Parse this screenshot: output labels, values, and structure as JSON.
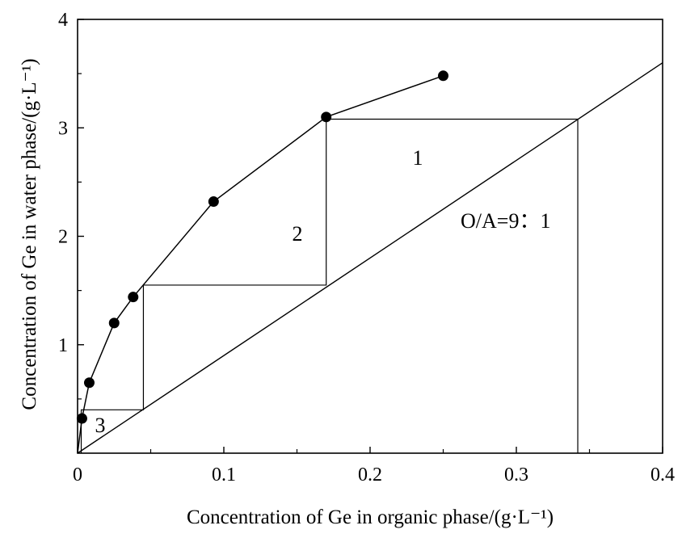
{
  "chart_data": {
    "type": "scatter",
    "xlabel": "Concentration of Ge in organic phase/(g·L⁻¹)",
    "ylabel": "Concentration of Ge in water phase/(g·L⁻¹)",
    "xlim": [
      0,
      0.4
    ],
    "ylim": [
      0,
      4
    ],
    "x_ticks": [
      0,
      0.1,
      0.2,
      0.3,
      0.4
    ],
    "x_tick_labels": [
      "0",
      "0.1",
      "0.2",
      "0.3",
      "0.4"
    ],
    "y_ticks": [
      1,
      2,
      3,
      4
    ],
    "y_tick_labels": [
      "1",
      "2",
      "3",
      "4"
    ],
    "grid": false,
    "series": [
      {
        "style": "line-with-markers",
        "x": [
          0.0,
          0.003,
          0.008,
          0.025,
          0.038,
          0.093,
          0.17,
          0.25
        ],
        "y": [
          0.0,
          0.32,
          0.65,
          1.2,
          1.44,
          2.32,
          3.1,
          3.48
        ]
      }
    ],
    "operating_line": {
      "x": [
        0.0,
        0.4
      ],
      "y": [
        0.0,
        3.6
      ],
      "label": "O/A=9：1"
    },
    "stages": {
      "path_x": [
        0.342,
        0.17,
        0.17,
        0.045,
        0.045,
        0.0025,
        0.0025
      ],
      "path_y": [
        3.08,
        3.08,
        1.55,
        1.55,
        0.4,
        0.4,
        0.0
      ],
      "drop_x": 0.342,
      "labels": [
        "1",
        "2",
        "3"
      ]
    }
  }
}
